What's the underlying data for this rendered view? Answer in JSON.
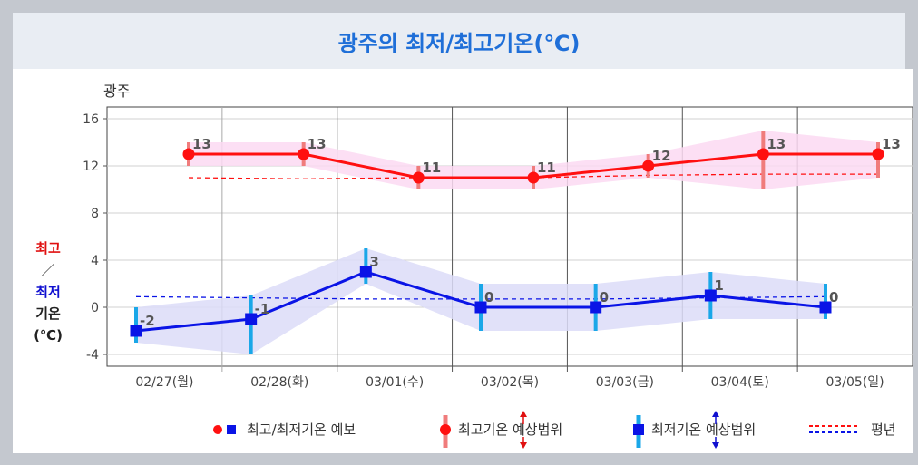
{
  "title": "광주의 최저/최고기온(℃)",
  "colors": {
    "max": "#ff1010",
    "min": "#0a14e6",
    "max_range": "#f07c7c",
    "min_range": "#1aa7e8",
    "max_band": "#fbd9f2",
    "min_band": "#dcdcf8",
    "accent": "#1f6fd8"
  },
  "ylabel": {
    "max": "최고",
    "slash": "／",
    "min": "최저",
    "rest1": "기온",
    "rest2": "(℃)"
  },
  "chart_data": {
    "type": "line",
    "subtitle": "광주",
    "categories": [
      "02/27(월)",
      "02/28(화)",
      "03/01(수)",
      "03/02(목)",
      "03/03(금)",
      "03/04(토)",
      "03/05(일)"
    ],
    "ylim": [
      -5,
      17
    ],
    "yticks": [
      16,
      12,
      8,
      4,
      0,
      -4
    ],
    "grid": true,
    "max": {
      "values": [
        13,
        13,
        11,
        11,
        12,
        13,
        13
      ],
      "low": [
        12,
        12,
        10,
        10,
        11,
        10,
        11
      ],
      "high": [
        14,
        14,
        12,
        12,
        13,
        15,
        14
      ]
    },
    "max_normal": [
      11.0,
      10.9,
      11.0,
      11.0,
      11.2,
      11.3,
      11.3
    ],
    "min": {
      "values": [
        -2,
        -1,
        3,
        0,
        0,
        1,
        0
      ],
      "low": [
        -3,
        -4,
        2,
        -2,
        -2,
        -1,
        -1
      ],
      "high": [
        0,
        1,
        5,
        2,
        2,
        3,
        2
      ]
    },
    "min_normal": [
      0.9,
      0.8,
      0.7,
      0.7,
      0.7,
      0.8,
      0.9
    ]
  },
  "legend": {
    "forecast": "최고/최저기온 예보",
    "max_range": "최고기온 예상범위",
    "min_range": "최저기온 예상범위",
    "normal": "평년"
  }
}
